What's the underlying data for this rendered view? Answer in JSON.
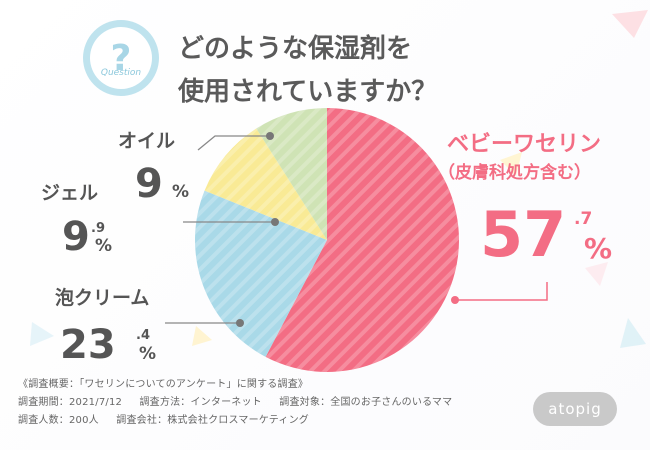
{
  "title": {
    "line1": "どのような保湿剤を",
    "line2": "使用されていますか？"
  },
  "badge": {
    "mark": "?",
    "word": "Question"
  },
  "chart_data": {
    "type": "pie",
    "start": "top",
    "direction": "clockwise",
    "slices": [
      {
        "name": "ベビーワセリン",
        "sub": "（皮膚科処方含む）",
        "int": "57",
        "dec": ".7",
        "unit": "%",
        "value": 57.7,
        "color": "#f36d84"
      },
      {
        "name": "泡クリーム",
        "int": "23",
        "dec": ".4",
        "unit": "%",
        "value": 23.4,
        "color": "#a9d9e8"
      },
      {
        "name": "ジェル",
        "int": "9",
        "dec": ".9",
        "unit": "%",
        "value": 9.9,
        "color": "#f9ea95"
      },
      {
        "name": "オイル",
        "int": "9",
        "dec": "",
        "unit": "%",
        "value": 9.0,
        "color": "#cfe3b5"
      }
    ]
  },
  "survey": {
    "line1": "《調査概要：「ワセリンについてのアンケート」に関する調査》",
    "line2a": "調査期間：2021/7/12",
    "line2b": "調査方法：インターネット",
    "line2c": "調査対象：全国のお子さんのいるママ",
    "line3a": "調査人数：200人",
    "line3b": "調査会社：株式会社クロスマーケティング"
  },
  "logo": {
    "text": "atopig"
  }
}
